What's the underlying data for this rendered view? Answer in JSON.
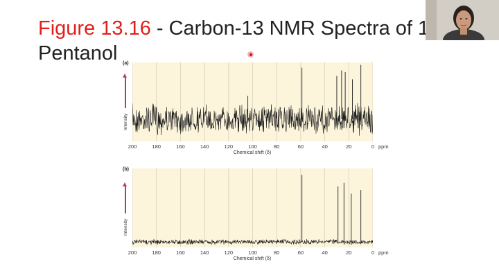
{
  "slide": {
    "title_figure": "Figure 13.16",
    "title_rest": " - Carbon-13 NMR Spectra of 1-",
    "title_line2": "Pentanol"
  },
  "chart_data": [
    {
      "type": "line",
      "panel_label": "(a)",
      "xlabel": "Chemical shift (δ)",
      "ylabel": "Intensity",
      "x_unit": "ppm",
      "xlim": [
        200,
        0
      ],
      "xticks": [
        200,
        180,
        160,
        140,
        120,
        100,
        80,
        60,
        40,
        20,
        0
      ],
      "noise": "high",
      "peaks": [
        {
          "x": 104,
          "height": 0.42
        },
        {
          "x": 59,
          "height": 0.93
        },
        {
          "x": 30,
          "height": 0.78
        },
        {
          "x": 26,
          "height": 0.88
        },
        {
          "x": 23,
          "height": 0.85
        },
        {
          "x": 17,
          "height": 0.72
        },
        {
          "x": 10,
          "height": 0.98
        }
      ]
    },
    {
      "type": "line",
      "panel_label": "(b)",
      "xlabel": "Chemical shift (δ)",
      "ylabel": "Intensity",
      "x_unit": "ppm",
      "xlim": [
        200,
        0
      ],
      "xticks": [
        200,
        180,
        160,
        140,
        120,
        100,
        80,
        60,
        40,
        20,
        0
      ],
      "noise": "low",
      "peaks": [
        {
          "x": 59,
          "height": 0.93
        },
        {
          "x": 29,
          "height": 0.77
        },
        {
          "x": 24,
          "height": 0.82
        },
        {
          "x": 18,
          "height": 0.67
        },
        {
          "x": 10,
          "height": 0.72
        }
      ]
    }
  ]
}
